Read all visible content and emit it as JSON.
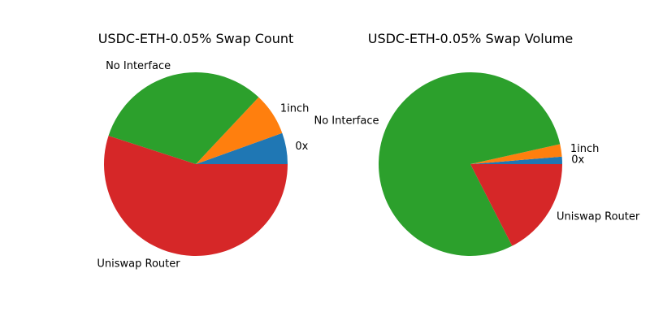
{
  "palette": [
    "#1f77b4",
    "#ff7f0e",
    "#2ca02c",
    "#d62728"
  ],
  "chart_data": [
    {
      "type": "pie",
      "title": "USDC-ETH-0.05% Swap Count",
      "start_angle_deg": 0,
      "direction": "counterclockwise",
      "slices": [
        {
          "label": "0x",
          "value": 5.5
        },
        {
          "label": "1inch",
          "value": 7.5
        },
        {
          "label": "No Interface",
          "value": 32.0
        },
        {
          "label": "Uniswap Router",
          "value": 55.0
        }
      ]
    },
    {
      "type": "pie",
      "title": "USDC-ETH-0.05% Swap Volume",
      "start_angle_deg": 0,
      "direction": "counterclockwise",
      "slices": [
        {
          "label": "0x",
          "value": 1.3
        },
        {
          "label": "1inch",
          "value": 2.2
        },
        {
          "label": "No Interface",
          "value": 79.0
        },
        {
          "label": "Uniswap Router",
          "value": 17.5
        }
      ]
    }
  ]
}
